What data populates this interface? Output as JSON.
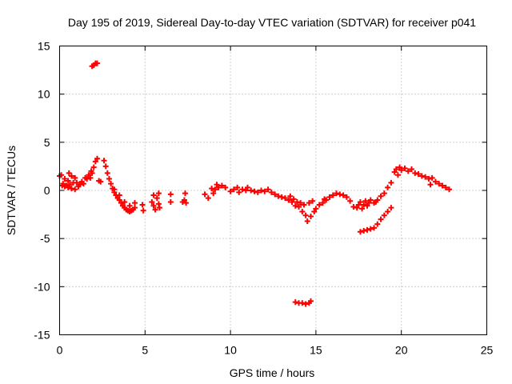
{
  "chart_data": {
    "type": "scatter",
    "title": "Day 195 of 2019, Sidereal Day-to-day VTEC variation (SDTVAR) for receiver p041",
    "xlabel": "GPS time / hours",
    "ylabel": "SDTVAR / TECUs",
    "xlim": [
      0,
      25
    ],
    "ylim": [
      -15,
      15
    ],
    "xticks": [
      0,
      5,
      10,
      15,
      20,
      25
    ],
    "yticks": [
      -15,
      -10,
      -5,
      0,
      5,
      10,
      15
    ],
    "xtick_labels": [
      "0",
      "5",
      "10",
      "15",
      "20",
      "25"
    ],
    "ytick_labels": [
      "-15",
      "-10",
      "-5",
      "0",
      "5",
      "10",
      "15"
    ],
    "grid": true,
    "marker": "+",
    "color": "#ff0000",
    "series": [
      {
        "name": "SDTVAR",
        "points": [
          [
            0.0,
            1.5
          ],
          [
            0.1,
            1.6
          ],
          [
            0.15,
            0.5
          ],
          [
            0.2,
            0.7
          ],
          [
            0.3,
            0.4
          ],
          [
            0.3,
            1.2
          ],
          [
            0.4,
            0.5
          ],
          [
            0.5,
            1.0
          ],
          [
            0.5,
            0.3
          ],
          [
            0.55,
            1.8
          ],
          [
            0.6,
            0.6
          ],
          [
            0.7,
            1.5
          ],
          [
            0.7,
            0.2
          ],
          [
            0.8,
            0.8
          ],
          [
            0.9,
            1.3
          ],
          [
            0.9,
            0.1
          ],
          [
            1.0,
            0.8
          ],
          [
            1.1,
            0.4
          ],
          [
            1.2,
            0.6
          ],
          [
            1.3,
            0.9
          ],
          [
            1.4,
            0.7
          ],
          [
            1.5,
            1.3
          ],
          [
            1.6,
            1.2
          ],
          [
            1.7,
            1.6
          ],
          [
            1.8,
            1.3
          ],
          [
            1.85,
            2.0
          ],
          [
            1.9,
            1.8
          ],
          [
            2.0,
            2.4
          ],
          [
            2.1,
            3.0
          ],
          [
            2.2,
            3.3
          ],
          [
            2.3,
            1.0
          ],
          [
            2.4,
            0.9
          ],
          [
            1.9,
            12.9
          ],
          [
            2.0,
            13.0
          ],
          [
            2.1,
            13.2
          ],
          [
            2.2,
            13.2
          ],
          [
            2.6,
            3.1
          ],
          [
            2.7,
            2.5
          ],
          [
            2.8,
            1.8
          ],
          [
            2.9,
            1.2
          ],
          [
            3.0,
            0.7
          ],
          [
            3.1,
            0.2
          ],
          [
            3.2,
            -0.2
          ],
          [
            3.3,
            -0.5
          ],
          [
            3.4,
            -0.8
          ],
          [
            3.5,
            -1.0
          ],
          [
            3.6,
            -1.3
          ],
          [
            3.7,
            -1.6
          ],
          [
            3.8,
            -1.8
          ],
          [
            3.9,
            -2.0
          ],
          [
            4.0,
            -2.1
          ],
          [
            4.1,
            -2.2
          ],
          [
            4.2,
            -2.1
          ],
          [
            4.3,
            -2.0
          ],
          [
            4.4,
            -1.8
          ],
          [
            3.2,
            0.1
          ],
          [
            3.5,
            -0.5
          ],
          [
            3.8,
            -1.2
          ],
          [
            4.1,
            -1.6
          ],
          [
            4.4,
            -1.3
          ],
          [
            4.85,
            -1.5
          ],
          [
            4.9,
            -2.1
          ],
          [
            5.4,
            -1.2
          ],
          [
            5.5,
            -1.6
          ],
          [
            5.5,
            -0.5
          ],
          [
            5.6,
            -2.0
          ],
          [
            5.7,
            -0.8
          ],
          [
            5.8,
            -1.4
          ],
          [
            5.8,
            -0.3
          ],
          [
            5.85,
            -1.8
          ],
          [
            6.5,
            -0.4
          ],
          [
            6.5,
            -1.2
          ],
          [
            7.2,
            -1.2
          ],
          [
            7.3,
            -1.0
          ],
          [
            7.35,
            -0.3
          ],
          [
            7.4,
            -1.3
          ],
          [
            8.5,
            -0.4
          ],
          [
            8.7,
            -0.8
          ],
          [
            8.9,
            0.2
          ],
          [
            9.0,
            -0.3
          ],
          [
            9.1,
            0.1
          ],
          [
            9.2,
            0.6
          ],
          [
            9.3,
            0.3
          ],
          [
            9.5,
            0.5
          ],
          [
            9.7,
            0.3
          ],
          [
            10.0,
            -0.1
          ],
          [
            10.2,
            0.1
          ],
          [
            10.4,
            0.3
          ],
          [
            10.5,
            -0.2
          ],
          [
            10.7,
            0.1
          ],
          [
            10.9,
            0.0
          ],
          [
            11.0,
            0.3
          ],
          [
            11.2,
            0.0
          ],
          [
            11.4,
            -0.1
          ],
          [
            11.6,
            -0.2
          ],
          [
            11.8,
            0.0
          ],
          [
            12.0,
            -0.1
          ],
          [
            12.2,
            0.1
          ],
          [
            12.4,
            -0.2
          ],
          [
            12.6,
            -0.4
          ],
          [
            12.8,
            -0.6
          ],
          [
            13.0,
            -0.7
          ],
          [
            13.2,
            -0.8
          ],
          [
            13.4,
            -1.0
          ],
          [
            13.5,
            -0.6
          ],
          [
            13.6,
            -1.2
          ],
          [
            13.7,
            -0.9
          ],
          [
            13.8,
            -1.6
          ],
          [
            13.9,
            -1.2
          ],
          [
            14.0,
            -1.7
          ],
          [
            14.1,
            -1.3
          ],
          [
            14.2,
            -2.2
          ],
          [
            14.3,
            -1.5
          ],
          [
            14.4,
            -2.6
          ],
          [
            14.5,
            -3.2
          ],
          [
            14.6,
            -1.3
          ],
          [
            14.7,
            -2.7
          ],
          [
            14.8,
            -1.1
          ],
          [
            14.9,
            -2.2
          ],
          [
            15.0,
            -1.9
          ],
          [
            15.2,
            -1.5
          ],
          [
            15.4,
            -1.3
          ],
          [
            15.5,
            -0.9
          ],
          [
            15.6,
            -1.0
          ],
          [
            15.8,
            -0.7
          ],
          [
            16.0,
            -0.5
          ],
          [
            16.2,
            -0.3
          ],
          [
            16.4,
            -0.4
          ],
          [
            16.6,
            -0.5
          ],
          [
            16.8,
            -0.7
          ],
          [
            17.0,
            -1.1
          ],
          [
            17.2,
            -1.7
          ],
          [
            17.4,
            -1.8
          ],
          [
            17.5,
            -1.5
          ],
          [
            17.6,
            -1.2
          ],
          [
            17.7,
            -1.9
          ],
          [
            17.8,
            -1.5
          ],
          [
            17.9,
            -1.1
          ],
          [
            18.0,
            -1.6
          ],
          [
            18.1,
            -1.3
          ],
          [
            18.2,
            -1.0
          ],
          [
            18.4,
            -1.3
          ],
          [
            18.5,
            -1.2
          ],
          [
            18.6,
            -1.0
          ],
          [
            18.8,
            -0.6
          ],
          [
            19.0,
            -0.3
          ],
          [
            19.2,
            0.3
          ],
          [
            19.4,
            0.8
          ],
          [
            17.6,
            -4.3
          ],
          [
            17.8,
            -4.2
          ],
          [
            18.0,
            -4.1
          ],
          [
            18.2,
            -4.0
          ],
          [
            18.4,
            -3.9
          ],
          [
            18.6,
            -3.5
          ],
          [
            18.8,
            -3.0
          ],
          [
            19.0,
            -2.6
          ],
          [
            19.2,
            -2.2
          ],
          [
            19.4,
            -1.8
          ],
          [
            19.6,
            1.9
          ],
          [
            19.7,
            2.2
          ],
          [
            19.8,
            1.6
          ],
          [
            19.9,
            2.4
          ],
          [
            20.0,
            2.1
          ],
          [
            20.2,
            2.3
          ],
          [
            20.4,
            2.0
          ],
          [
            20.6,
            2.2
          ],
          [
            20.8,
            1.8
          ],
          [
            21.0,
            1.7
          ],
          [
            21.2,
            1.5
          ],
          [
            21.4,
            1.4
          ],
          [
            21.6,
            1.2
          ],
          [
            21.8,
            1.3
          ],
          [
            21.7,
            0.6
          ],
          [
            22.0,
            0.9
          ],
          [
            22.2,
            0.7
          ],
          [
            22.4,
            0.5
          ],
          [
            22.6,
            0.3
          ],
          [
            22.8,
            0.1
          ],
          [
            13.8,
            -11.6
          ],
          [
            14.0,
            -11.7
          ],
          [
            14.2,
            -11.7
          ],
          [
            14.4,
            -11.8
          ],
          [
            14.6,
            -11.7
          ],
          [
            14.7,
            -11.5
          ]
        ]
      }
    ]
  }
}
